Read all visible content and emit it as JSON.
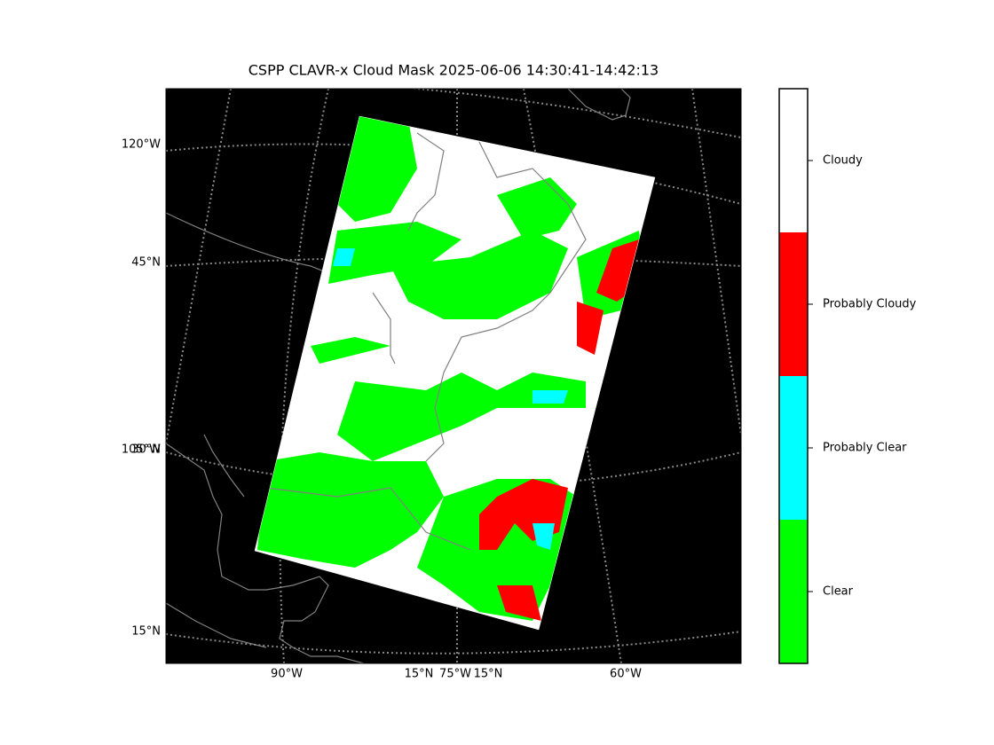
{
  "title": "CSPP CLAVR-x Cloud Mask 2025-06-06 14:30:41-14:42:13",
  "map": {
    "left_labels": [
      "120°W",
      "45°N",
      "105°W",
      "30°N",
      "15°N"
    ],
    "bottom_labels": [
      "90°W",
      "15°N",
      "75°W",
      "15°N",
      "60°W"
    ]
  },
  "colorbar": {
    "categories": [
      {
        "label": "Cloudy",
        "color": "#ffffff"
      },
      {
        "label": "Probably Cloudy",
        "color": "#ff0000"
      },
      {
        "label": "Probably Clear",
        "color": "#00ffff"
      },
      {
        "label": "Clear",
        "color": "#00ff00"
      }
    ]
  }
}
